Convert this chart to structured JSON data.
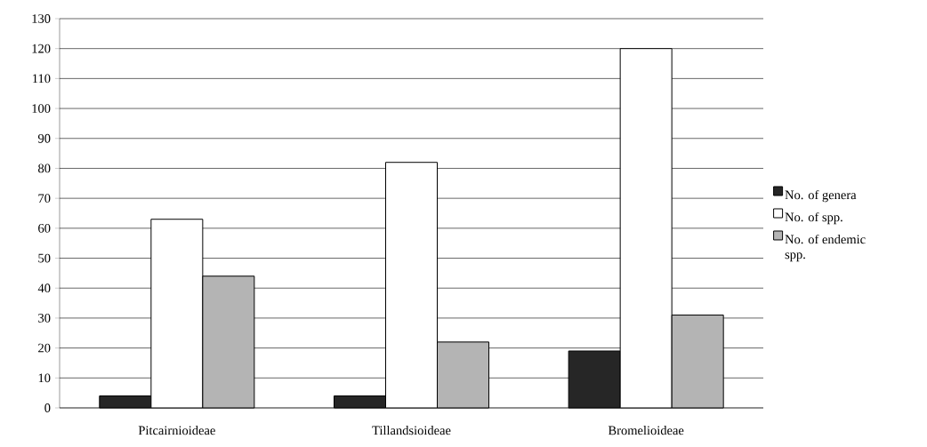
{
  "chart_data": {
    "type": "bar",
    "categories": [
      "Pitcairnioideae",
      "Tillandsioideae",
      "Bromelioideae"
    ],
    "series": [
      {
        "name": "No. of genera",
        "color": "#262626",
        "values": [
          4,
          4,
          19
        ]
      },
      {
        "name": "No. of spp.",
        "color": "#ffffff",
        "values": [
          63,
          82,
          120
        ]
      },
      {
        "name": "No. of endemic spp.",
        "color": "#b4b4b4",
        "values": [
          44,
          22,
          31
        ]
      }
    ],
    "ylim": [
      0,
      130
    ],
    "yticks": [
      0,
      10,
      20,
      30,
      40,
      50,
      60,
      70,
      80,
      90,
      100,
      110,
      120,
      130
    ],
    "grid": "y",
    "legend": "right"
  }
}
